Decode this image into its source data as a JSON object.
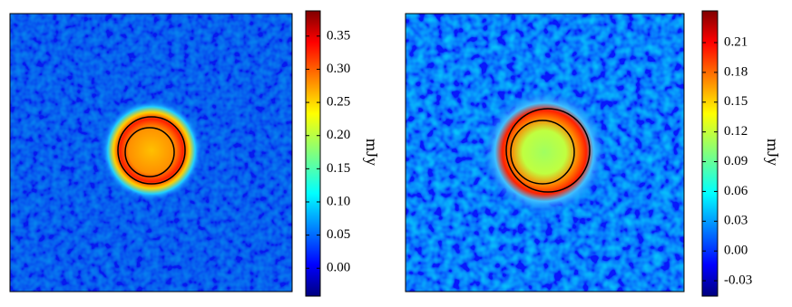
{
  "chart_data": [
    {
      "type": "heatmap",
      "colorbar_label": "mJy",
      "clim": [
        -0.042,
        0.388
      ],
      "cticks": [
        {
          "value": 0,
          "label": "0.00"
        },
        {
          "value": 0.05,
          "label": "0.05"
        },
        {
          "value": 0.1,
          "label": "0.10"
        },
        {
          "value": 0.15,
          "label": "0.15"
        },
        {
          "value": 0.2,
          "label": "0.20"
        },
        {
          "value": 0.25,
          "label": "0.25"
        },
        {
          "value": 0.3,
          "label": "0.30"
        },
        {
          "value": 0.35,
          "label": "0.35"
        }
      ]
    },
    {
      "type": "heatmap",
      "colorbar_label": "mJy",
      "clim": [
        -0.0455,
        0.242
      ],
      "cticks": [
        {
          "value": -0.03,
          "label": "-0.03"
        },
        {
          "value": 0,
          "label": "0.00"
        },
        {
          "value": 0.03,
          "label": "0.03"
        },
        {
          "value": 0.06,
          "label": "0.06"
        },
        {
          "value": 0.09,
          "label": "0.09"
        },
        {
          "value": 0.12,
          "label": "0.12"
        },
        {
          "value": 0.15,
          "label": "0.15"
        },
        {
          "value": 0.18,
          "label": "0.18"
        },
        {
          "value": 0.21,
          "label": "0.21"
        }
      ]
    }
  ]
}
